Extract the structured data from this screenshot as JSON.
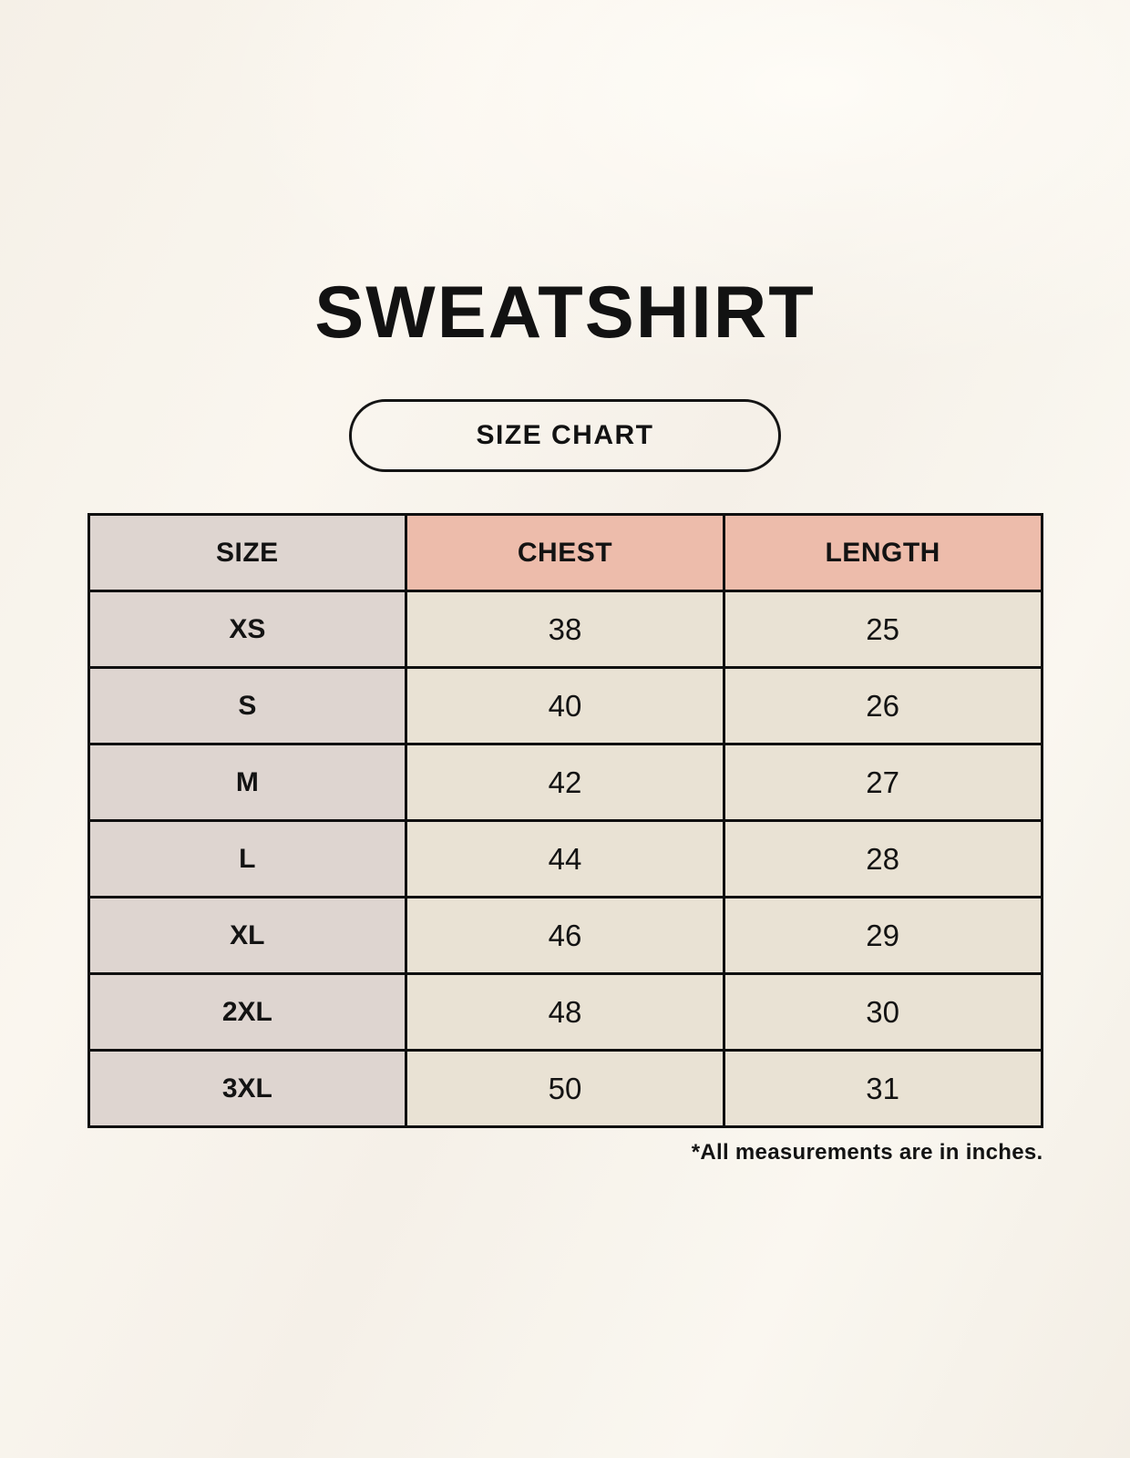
{
  "page": {
    "title": "SWEATSHIRT",
    "badge_label": "SIZE CHART",
    "footnote": "*All measurements are in inches."
  },
  "colors": {
    "page_background": "#F7F3EB",
    "size_column_fill": "#DED5D0",
    "accent_header_fill": "#EDBCAB",
    "data_cell_fill": "#E9E2D4",
    "table_border": "#101010",
    "text": "#131313"
  },
  "chart_data": {
    "type": "table",
    "title": "SWEATSHIRT",
    "subtitle": "SIZE CHART",
    "columns": [
      "SIZE",
      "CHEST",
      "LENGTH"
    ],
    "rows": [
      {
        "size": "XS",
        "chest": "38",
        "length": "25"
      },
      {
        "size": "S",
        "chest": "40",
        "length": "26"
      },
      {
        "size": "M",
        "chest": "42",
        "length": "27"
      },
      {
        "size": "L",
        "chest": "44",
        "length": "28"
      },
      {
        "size": "XL",
        "chest": "46",
        "length": "29"
      },
      {
        "size": "2XL",
        "chest": "48",
        "length": "30"
      },
      {
        "size": "3XL",
        "chest": "50",
        "length": "31"
      }
    ],
    "units": "inches",
    "footnote": "*All measurements are in inches."
  }
}
